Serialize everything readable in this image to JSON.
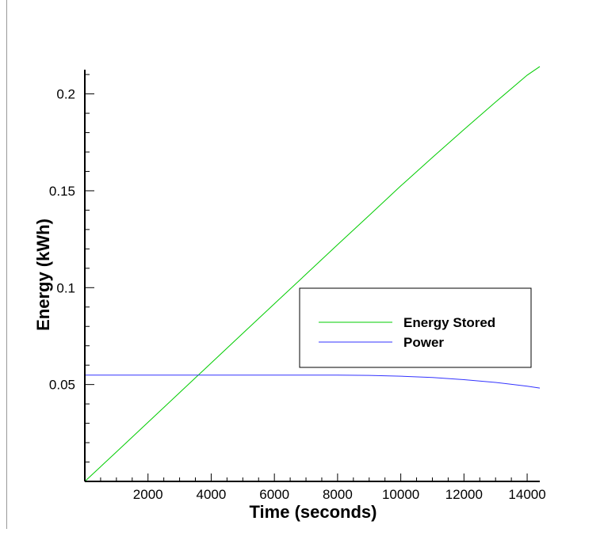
{
  "chart_data": {
    "type": "line",
    "xlabel": "Time (seconds)",
    "ylabel": "Energy (kWh)",
    "xlim": [
      0,
      14400
    ],
    "ylim": [
      0,
      0.2125
    ],
    "x_ticks": [
      2000,
      4000,
      6000,
      8000,
      10000,
      12000,
      14000
    ],
    "x_tick_labels": [
      "2000",
      "4000",
      "6000",
      "8000",
      "10000",
      "12000",
      "14000"
    ],
    "y_ticks": [
      0.05,
      0.1,
      0.15,
      0.2
    ],
    "y_tick_labels": [
      "0.05",
      "0.1",
      "0.15",
      "0.2"
    ],
    "grid": false,
    "legend_position": "center-right",
    "series": [
      {
        "name": "Energy Stored",
        "color": "#00cc00",
        "x": [
          0,
          1000,
          2000,
          3000,
          4000,
          5000,
          6000,
          7000,
          8000,
          9000,
          10000,
          11000,
          12000,
          13000,
          14000,
          14400
        ],
        "y": [
          0.0,
          0.0152,
          0.0305,
          0.0458,
          0.0611,
          0.0764,
          0.0917,
          0.1069,
          0.1222,
          0.1373,
          0.1525,
          0.1672,
          0.1816,
          0.1958,
          0.2097,
          0.2141
        ]
      },
      {
        "name": "Power",
        "color": "#3333ff",
        "x": [
          0,
          2000,
          4000,
          6000,
          8000,
          9000,
          10000,
          11000,
          12000,
          13000,
          14000,
          14400
        ],
        "y": [
          0.0549,
          0.0549,
          0.0549,
          0.0549,
          0.0549,
          0.0547,
          0.0543,
          0.0536,
          0.0525,
          0.0511,
          0.0491,
          0.0482
        ]
      }
    ]
  }
}
